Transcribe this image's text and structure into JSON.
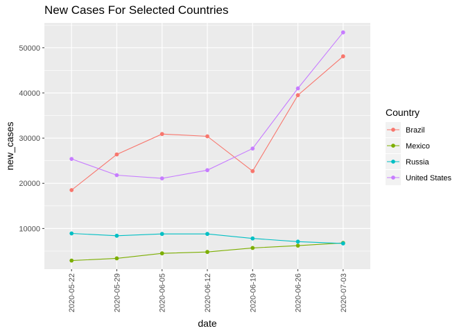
{
  "chart_data": {
    "type": "line",
    "title": "New Cases For Selected Countries",
    "xlabel": "date",
    "ylabel": "new_cases",
    "x": [
      "2020-05-22",
      "2020-05-29",
      "2020-06-05",
      "2020-06-12",
      "2020-06-19",
      "2020-06-26",
      "2020-07-03"
    ],
    "yticks": [
      10000,
      20000,
      30000,
      40000,
      50000
    ],
    "ytick_labels": [
      "10000",
      "20000",
      "30000",
      "40000",
      "50000"
    ],
    "ylim": [
      1000,
      55500
    ],
    "grid": true,
    "legend": {
      "title": "Country",
      "position": "right"
    },
    "series": [
      {
        "name": "Brazil",
        "color": "#F8766D",
        "values": [
          18500,
          26400,
          30900,
          30400,
          22700,
          39500,
          48100
        ]
      },
      {
        "name": "Mexico",
        "color": "#7CAE00",
        "values": [
          2900,
          3400,
          4500,
          4800,
          5700,
          6200,
          6800
        ]
      },
      {
        "name": "Russia",
        "color": "#00BFC4",
        "values": [
          8900,
          8400,
          8800,
          8800,
          7800,
          7100,
          6700
        ]
      },
      {
        "name": "United States",
        "color": "#C77CFF",
        "values": [
          25400,
          21800,
          21100,
          22900,
          27700,
          41000,
          53400
        ]
      }
    ]
  }
}
